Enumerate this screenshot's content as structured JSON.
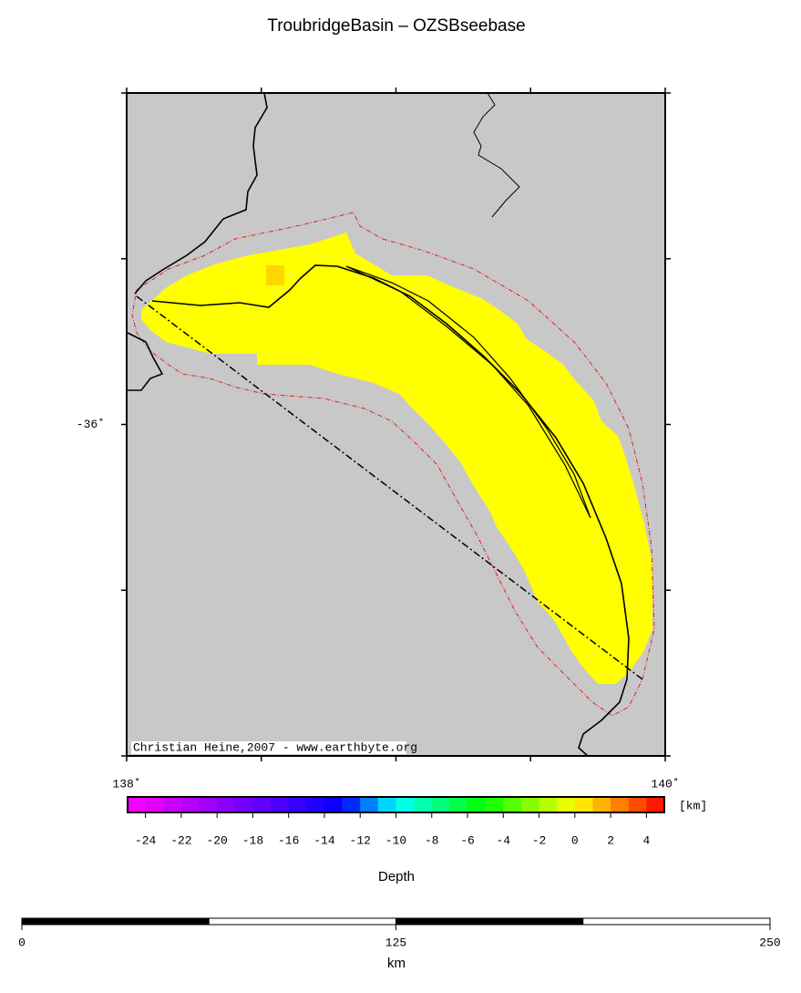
{
  "title": "TroubridgeBasin – OZSBseebase",
  "map": {
    "credit": "Christian Heine,2007 - www.earthbyte.org",
    "xlim": [
      138,
      140
    ],
    "ylim": [
      -37,
      -35
    ],
    "xticks": [
      {
        "value": 138,
        "label": "138˚"
      },
      {
        "value": 140,
        "label": "140˚"
      }
    ],
    "yticks": [
      {
        "value": -36,
        "label": "-36˚"
      }
    ],
    "minor_xticks": [
      138.5,
      139,
      139.5
    ],
    "minor_yticks": [
      -35,
      -35.5,
      -36.5,
      -37
    ]
  },
  "colorbar": {
    "label": "Depth",
    "unit": "[km]",
    "lim": [
      -25,
      5
    ],
    "ticks": [
      -24,
      -22,
      -20,
      -18,
      -16,
      -14,
      -12,
      -10,
      -8,
      -6,
      -4,
      -2,
      0,
      2,
      4
    ]
  },
  "scalebar": {
    "label": "km",
    "lim": [
      0,
      250
    ],
    "ticks": [
      0,
      125,
      250
    ]
  }
}
